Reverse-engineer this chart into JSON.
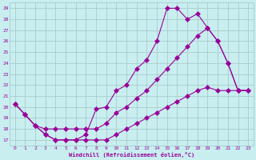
{
  "xlabel": "Windchill (Refroidissement éolien,°C)",
  "bg_color": "#c8eef0",
  "line_color": "#990099",
  "grid_color": "#aacccc",
  "yticks": [
    17,
    18,
    19,
    20,
    21,
    22,
    23,
    24,
    25,
    26,
    27,
    28,
    29
  ],
  "xticks": [
    0,
    1,
    2,
    3,
    4,
    5,
    6,
    7,
    8,
    9,
    10,
    11,
    12,
    13,
    14,
    15,
    16,
    17,
    18,
    19,
    20,
    21,
    22,
    23
  ],
  "line1_x": [
    0,
    1,
    2,
    3,
    4,
    5,
    6,
    7,
    8,
    9,
    10,
    11,
    12,
    13,
    14,
    15,
    16,
    17,
    18,
    19,
    20,
    21,
    22,
    23
  ],
  "line1_y": [
    20.3,
    19.3,
    18.3,
    17.5,
    17.0,
    17.0,
    17.0,
    17.5,
    19.8,
    20.0,
    21.5,
    22.0,
    23.5,
    24.3,
    26.0,
    29.0,
    29.0,
    28.0,
    28.5,
    27.2,
    26.0,
    24.0,
    21.5,
    21.5
  ],
  "line2_x": [
    0,
    1,
    2,
    3,
    4,
    5,
    6,
    7,
    8,
    9,
    10,
    11,
    12,
    13,
    14,
    15,
    16,
    17,
    18,
    19,
    20,
    21,
    22,
    23
  ],
  "line2_y": [
    20.3,
    19.3,
    18.3,
    18.0,
    18.0,
    18.0,
    18.0,
    18.0,
    18.0,
    18.5,
    19.5,
    20.0,
    20.8,
    21.5,
    22.5,
    23.5,
    24.5,
    25.5,
    26.5,
    27.2,
    26.0,
    24.0,
    21.5,
    21.5
  ],
  "line3_x": [
    0,
    1,
    2,
    3,
    4,
    5,
    6,
    7,
    8,
    9,
    10,
    11,
    12,
    13,
    14,
    15,
    16,
    17,
    18,
    19,
    20,
    21,
    22,
    23
  ],
  "line3_y": [
    20.3,
    19.3,
    18.3,
    17.5,
    17.0,
    17.0,
    17.0,
    17.0,
    17.0,
    17.0,
    17.5,
    18.0,
    18.5,
    19.0,
    19.5,
    20.0,
    20.5,
    21.0,
    21.5,
    21.8,
    21.5,
    21.5,
    21.5,
    21.5
  ],
  "ylim": [
    16.5,
    29.5
  ],
  "xlim": [
    -0.5,
    23.5
  ],
  "figwidth": 3.2,
  "figheight": 2.0,
  "dpi": 100
}
